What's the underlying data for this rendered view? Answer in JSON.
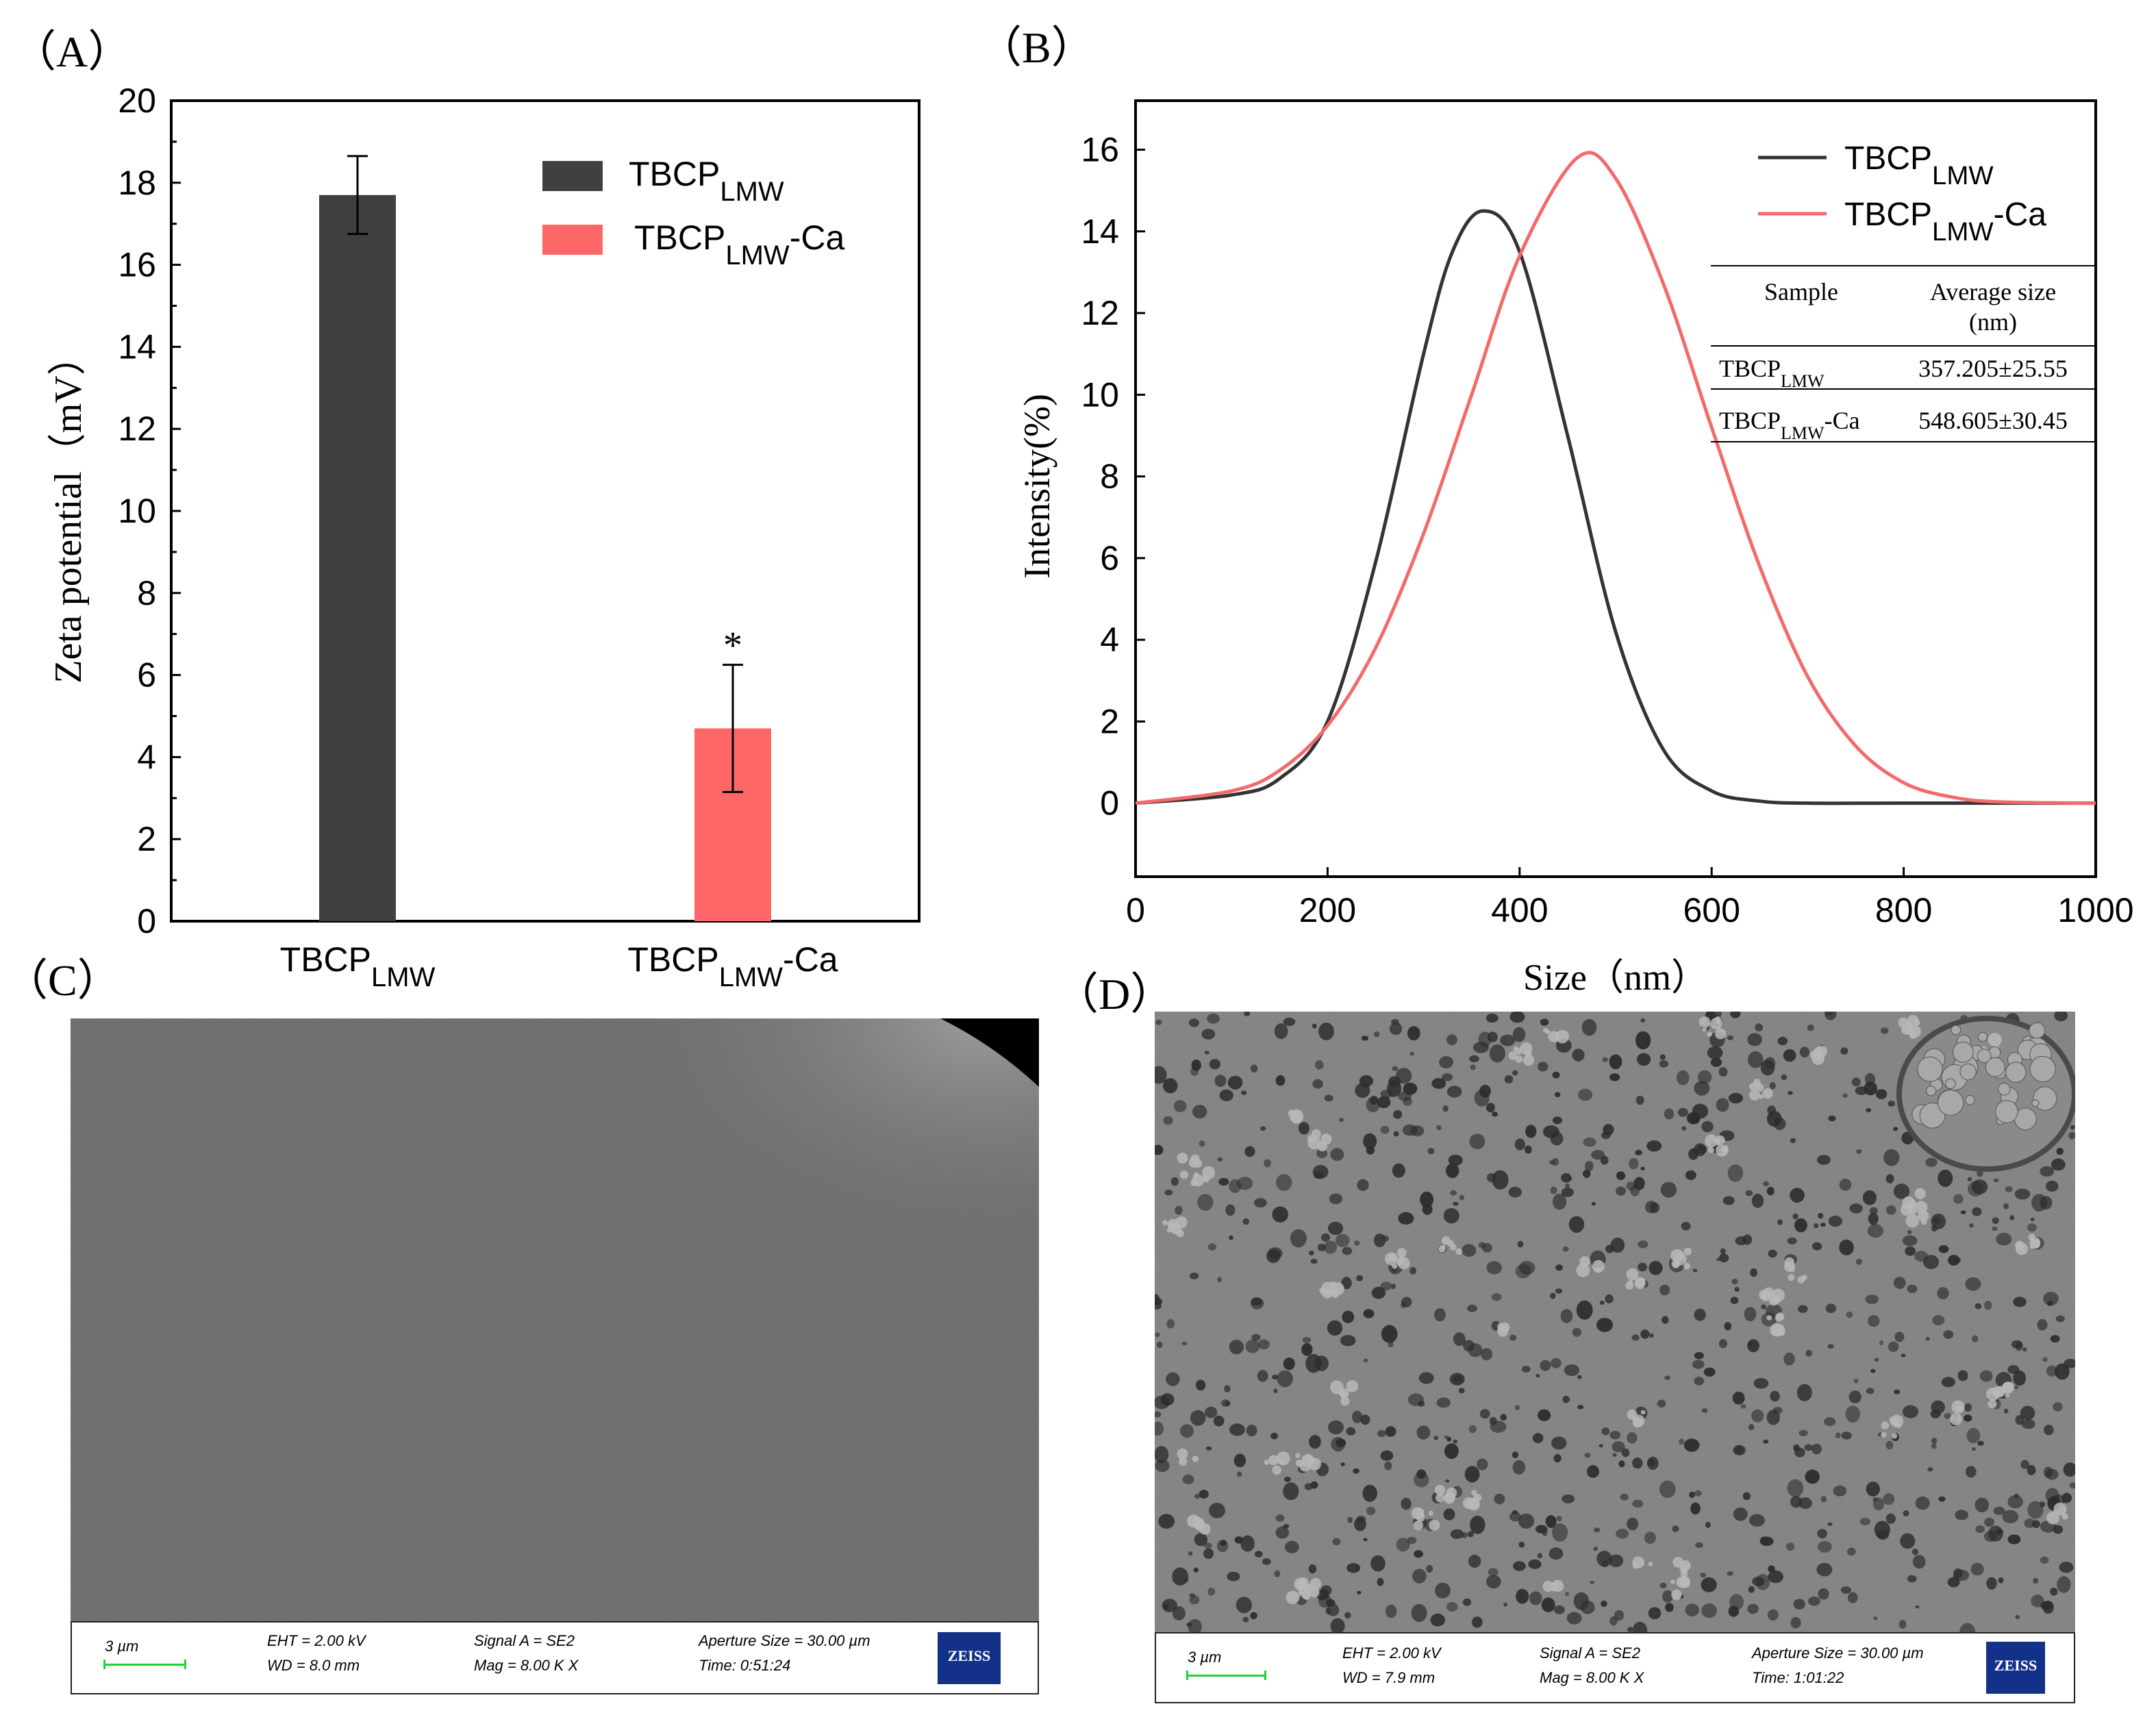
{
  "panels": {
    "a": "（A）",
    "b": "（B）",
    "c": "（C）",
    "d": "（D）"
  },
  "chart_data": [
    {
      "type": "bar",
      "panel": "A",
      "ylabel": "Zeta potential（mV）",
      "ylim": [
        0,
        20
      ],
      "yticks": [
        "0",
        "2",
        "4",
        "6",
        "8",
        "10",
        "12",
        "14",
        "16",
        "18",
        "20"
      ],
      "categories": [
        {
          "base": "TBCP",
          "sub": "LMW",
          "suffix": ""
        },
        {
          "base": "TBCP",
          "sub": "LMW",
          "suffix": "-Ca"
        }
      ],
      "values": [
        17.7,
        4.7
      ],
      "errors": [
        0.95,
        1.55
      ],
      "significance": [
        "",
        "*"
      ],
      "colors": [
        "#404040",
        "#fd6767"
      ],
      "legend": [
        {
          "base": "TBCP",
          "sub": "LMW",
          "suffix": "",
          "color": "#404040"
        },
        {
          "base": "TBCP",
          "sub": "LMW",
          "suffix": "-Ca",
          "color": "#fd6767"
        }
      ],
      "legend_position": "top-right"
    },
    {
      "type": "line",
      "panel": "B",
      "xlabel": "Size（nm）",
      "ylabel": "Intensity(%)",
      "xlim": [
        0,
        1000
      ],
      "ylim": [
        -1.8,
        17.2
      ],
      "xticks": [
        "0",
        "200",
        "400",
        "600",
        "800",
        "1000"
      ],
      "yticks": [
        "0",
        "2",
        "4",
        "6",
        "8",
        "10",
        "12",
        "14",
        "16"
      ],
      "series": [
        {
          "base": "TBCP",
          "sub": "LMW",
          "suffix": "",
          "color": "#333333",
          "x": [
            0,
            100,
            150,
            200,
            250,
            300,
            330,
            362,
            400,
            450,
            500,
            550,
            600,
            650,
            700,
            800,
            1000
          ],
          "y": [
            0,
            0.2,
            0.6,
            2.0,
            5.9,
            11.0,
            13.5,
            14.5,
            13.5,
            9.0,
            4.2,
            1.3,
            0.3,
            0.05,
            0,
            0,
            0
          ]
        },
        {
          "base": "TBCP",
          "sub": "LMW",
          "suffix": "-Ca",
          "color": "#f36a6a",
          "x": [
            0,
            100,
            150,
            200,
            250,
            300,
            350,
            400,
            460,
            500,
            550,
            600,
            650,
            700,
            750,
            800,
            850,
            900,
            1000
          ],
          "y": [
            0,
            0.3,
            0.8,
            1.9,
            3.8,
            6.6,
            10.0,
            13.4,
            15.8,
            15.3,
            12.7,
            9.2,
            5.8,
            3.1,
            1.4,
            0.5,
            0.15,
            0.03,
            0
          ]
        }
      ],
      "legend_position": "top-right",
      "table": {
        "headers": [
          "Sample",
          "Average size",
          "(nm)"
        ],
        "rows": [
          {
            "base": "TBCP",
            "sub": "LMW",
            "suffix": "",
            "value": "357.205±25.55"
          },
          {
            "base": "TBCP",
            "sub": "LMW",
            "suffix": "-Ca",
            "value": "548.605±30.45"
          }
        ]
      }
    }
  ],
  "sem": [
    {
      "panel": "C",
      "scale": "3 µm",
      "eht": "EHT =  2.00 kV",
      "wd": "WD =  8.0 mm",
      "signal": "Signal A = SE2",
      "mag": "Mag =     8.00 K X",
      "aperture": "Aperture Size = 30.00 µm",
      "time": "Time: 0:51:24",
      "logo": "ZEISS"
    },
    {
      "panel": "D",
      "scale": "3 µm",
      "eht": "EHT =  2.00 kV",
      "wd": "WD =  7.9 mm",
      "signal": "Signal A = SE2",
      "mag": "Mag =     8.00 K X",
      "aperture": "Aperture Size = 30.00 µm",
      "time": "Time: 1:01:22",
      "logo": "ZEISS"
    }
  ]
}
